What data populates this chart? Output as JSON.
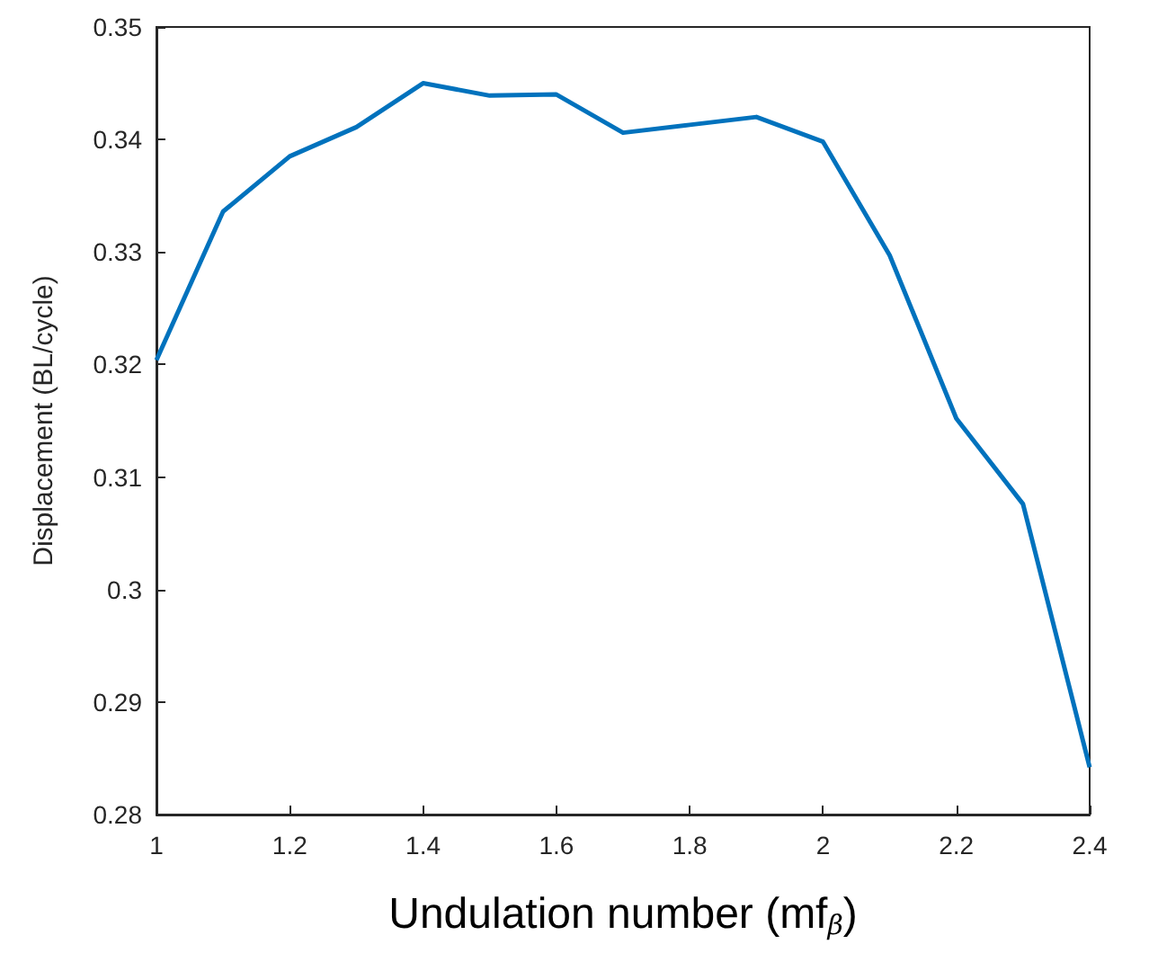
{
  "chart_data": {
    "type": "line",
    "xlabel": "Undulation number (mf$_{β}$)",
    "ylabel": "Displacement (BL/cycle)",
    "x": [
      1,
      1.1,
      1.2,
      1.3,
      1.4,
      1.5,
      1.6,
      1.7,
      1.8,
      1.9,
      2,
      2.1,
      2.2,
      2.3,
      2.4
    ],
    "series": [
      {
        "color": "#0072bd",
        "values": [
          0.3204,
          0.3336,
          0.3385,
          0.3411,
          0.345,
          0.3439,
          0.344,
          0.3406,
          0.3413,
          0.342,
          0.3398,
          0.3297,
          0.3152,
          0.3076,
          0.2842
        ]
      }
    ],
    "xlim": [
      1,
      2.4
    ],
    "xticks": [
      1,
      1.2,
      1.4,
      1.6,
      1.8,
      2,
      2.2,
      2.4
    ],
    "ylim": [
      0.28,
      0.35
    ],
    "yticks": [
      0.28,
      0.29,
      0.3,
      0.31,
      0.32,
      0.33,
      0.34,
      0.35
    ],
    "grid": false,
    "marker": "none",
    "line_style": "solid"
  }
}
